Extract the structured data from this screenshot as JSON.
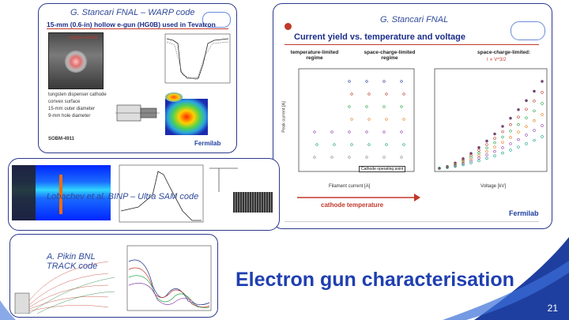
{
  "slide": {
    "title": "Electron gun characterisation",
    "page_number": "21"
  },
  "panel_top_left": {
    "caption": "G. Stancari FNAL – WARP code",
    "heading": "15-mm (0.6-in) hollow e-gun (HG0B) used in Tevatron",
    "photo_label": "copper anode",
    "cathode_label": "tungsten dispenser cathode",
    "bullets": [
      "convex surface",
      "15-mm outer diameter",
      "9-mm hole diameter"
    ],
    "code": "SOBM-4911",
    "fermilab": "Fermilab"
  },
  "panel_top_right": {
    "caption": "G. Stancari FNAL",
    "heading": "Current yield vs. temperature and voltage",
    "labels": {
      "temp_limited": "temperature-limited regime",
      "space_charge_regime": "space-charge-limited regime",
      "space_charge_limited": "space-charge-limited:",
      "formula": "I ∝ V^3/2",
      "left_xaxis": "Filament current [A]",
      "right_xaxis": "Voltage [kV]",
      "yaxis": "Peak current [A]",
      "operating_point": "Cathode operating point",
      "cathode_temperature": "cathode temperature",
      "fermilab": "Fermilab"
    }
  },
  "panel_middle": {
    "caption": "Lobachev et al. BINP – Ultra SAM code"
  },
  "panel_bottom": {
    "caption": "A. Pikin BNL TRACK code"
  }
}
